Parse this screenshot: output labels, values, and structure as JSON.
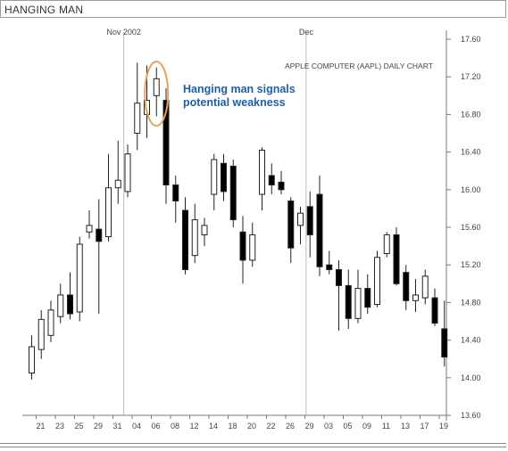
{
  "header": {
    "title": "HANGING MAN"
  },
  "chart_data": {
    "type": "candlestick",
    "title": "APPLE COMPUTER (AAPL) DAILY CHART",
    "annotation": "Hanging man signals\npotential weakness",
    "annotation_color": "#1f5fa8",
    "highlight_color": "#e8a05a",
    "ylim": [
      13.6,
      17.6
    ],
    "yticks": [
      "17.60",
      "17.20",
      "16.80",
      "16.40",
      "16.00",
      "15.60",
      "15.20",
      "14.80",
      "14.40",
      "14.00",
      "13.60"
    ],
    "xticks": [
      "21",
      "23",
      "25",
      "29",
      "31",
      "04",
      "06",
      "08",
      "12",
      "14",
      "18",
      "20",
      "22",
      "26",
      "29",
      "03",
      "05",
      "09",
      "11",
      "13",
      "17",
      "19"
    ],
    "month_labels": [
      {
        "label": "Nov 2002",
        "index": 10
      },
      {
        "label": "Dec",
        "index": 29
      }
    ],
    "highlight_index": 13,
    "candles": [
      {
        "o": 14.05,
        "h": 14.45,
        "l": 13.98,
        "c": 14.33,
        "up": true
      },
      {
        "o": 14.3,
        "h": 14.72,
        "l": 14.2,
        "c": 14.62,
        "up": true
      },
      {
        "o": 14.45,
        "h": 14.82,
        "l": 14.38,
        "c": 14.72,
        "up": true
      },
      {
        "o": 14.65,
        "h": 15.0,
        "l": 14.58,
        "c": 14.88,
        "up": true
      },
      {
        "o": 14.88,
        "h": 15.12,
        "l": 14.62,
        "c": 14.68,
        "up": false
      },
      {
        "o": 14.7,
        "h": 15.5,
        "l": 14.6,
        "c": 15.42,
        "up": true
      },
      {
        "o": 15.55,
        "h": 15.78,
        "l": 15.48,
        "c": 15.62,
        "up": true
      },
      {
        "o": 15.58,
        "h": 15.9,
        "l": 14.68,
        "c": 15.45,
        "up": false
      },
      {
        "o": 15.5,
        "h": 16.38,
        "l": 15.45,
        "c": 16.02,
        "up": true
      },
      {
        "o": 16.02,
        "h": 16.52,
        "l": 15.85,
        "c": 16.1,
        "up": true
      },
      {
        "o": 15.98,
        "h": 16.48,
        "l": 15.92,
        "c": 16.38,
        "up": true
      },
      {
        "o": 16.6,
        "h": 17.35,
        "l": 16.42,
        "c": 16.92,
        "up": true
      },
      {
        "o": 16.8,
        "h": 17.32,
        "l": 16.55,
        "c": 16.95,
        "up": true
      },
      {
        "o": 17.0,
        "h": 17.3,
        "l": 16.78,
        "c": 17.18,
        "up": true
      },
      {
        "o": 16.95,
        "h": 17.08,
        "l": 15.85,
        "c": 16.05,
        "up": false
      },
      {
        "o": 16.05,
        "h": 16.15,
        "l": 15.65,
        "c": 15.88,
        "up": false
      },
      {
        "o": 15.78,
        "h": 15.92,
        "l": 15.1,
        "c": 15.15,
        "up": false
      },
      {
        "o": 15.3,
        "h": 15.85,
        "l": 15.22,
        "c": 15.68,
        "up": true
      },
      {
        "o": 15.52,
        "h": 15.7,
        "l": 15.4,
        "c": 15.62,
        "up": true
      },
      {
        "o": 15.95,
        "h": 16.38,
        "l": 15.78,
        "c": 16.32,
        "up": true
      },
      {
        "o": 16.28,
        "h": 16.38,
        "l": 15.88,
        "c": 15.98,
        "up": false
      },
      {
        "o": 16.25,
        "h": 16.32,
        "l": 15.6,
        "c": 15.68,
        "up": false
      },
      {
        "o": 15.55,
        "h": 15.72,
        "l": 15.0,
        "c": 15.25,
        "up": false
      },
      {
        "o": 15.25,
        "h": 15.65,
        "l": 15.18,
        "c": 15.52,
        "up": true
      },
      {
        "o": 15.95,
        "h": 16.45,
        "l": 15.78,
        "c": 16.42,
        "up": true
      },
      {
        "o": 16.15,
        "h": 16.28,
        "l": 15.95,
        "c": 16.05,
        "up": false
      },
      {
        "o": 16.08,
        "h": 16.2,
        "l": 15.95,
        "c": 16.0,
        "up": false
      },
      {
        "o": 15.88,
        "h": 15.92,
        "l": 15.22,
        "c": 15.38,
        "up": false
      },
      {
        "o": 15.62,
        "h": 15.82,
        "l": 15.42,
        "c": 15.75,
        "up": true
      },
      {
        "o": 15.82,
        "h": 15.98,
        "l": 15.28,
        "c": 15.52,
        "up": false
      },
      {
        "o": 15.95,
        "h": 16.15,
        "l": 15.08,
        "c": 15.18,
        "up": false
      },
      {
        "o": 15.2,
        "h": 15.35,
        "l": 15.1,
        "c": 15.15,
        "up": false
      },
      {
        "o": 15.15,
        "h": 15.25,
        "l": 14.5,
        "c": 14.98,
        "up": false
      },
      {
        "o": 14.98,
        "h": 15.15,
        "l": 14.52,
        "c": 14.63,
        "up": false
      },
      {
        "o": 14.63,
        "h": 15.15,
        "l": 14.58,
        "c": 14.95,
        "up": true
      },
      {
        "o": 14.95,
        "h": 15.1,
        "l": 14.68,
        "c": 14.75,
        "up": false
      },
      {
        "o": 14.78,
        "h": 15.35,
        "l": 14.75,
        "c": 15.28,
        "up": true
      },
      {
        "o": 15.32,
        "h": 15.55,
        "l": 15.28,
        "c": 15.52,
        "up": true
      },
      {
        "o": 15.52,
        "h": 15.6,
        "l": 14.98,
        "c": 15.0,
        "up": false
      },
      {
        "o": 15.12,
        "h": 15.2,
        "l": 14.72,
        "c": 14.82,
        "up": false
      },
      {
        "o": 14.82,
        "h": 15.05,
        "l": 14.7,
        "c": 14.88,
        "up": true
      },
      {
        "o": 14.85,
        "h": 15.15,
        "l": 14.78,
        "c": 15.08,
        "up": true
      },
      {
        "o": 14.85,
        "h": 14.95,
        "l": 14.55,
        "c": 14.58,
        "up": false
      },
      {
        "o": 14.52,
        "h": 14.82,
        "l": 14.12,
        "c": 14.22,
        "up": false
      }
    ]
  }
}
